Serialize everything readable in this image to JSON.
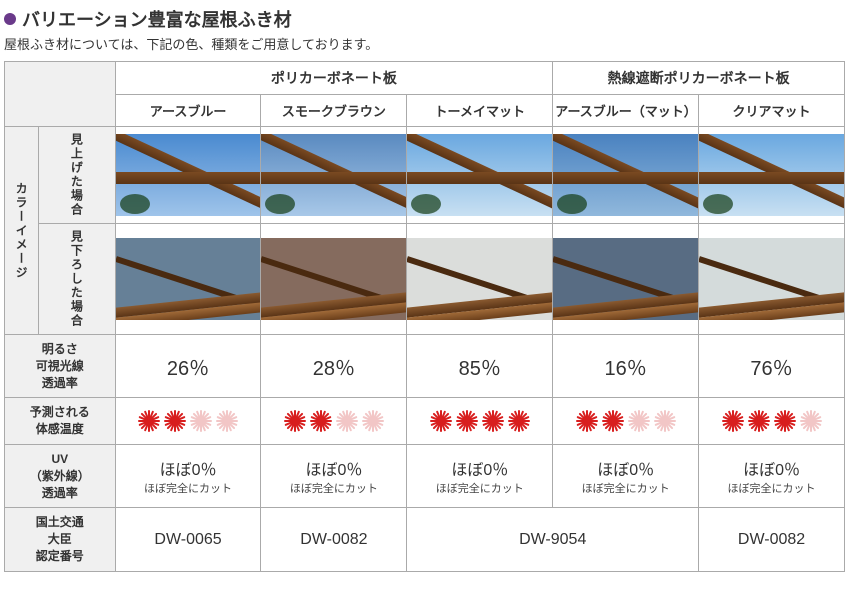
{
  "heading": {
    "bullet_color": "#6a3a8a",
    "title": "バリエーション豊富な屋根ふき材"
  },
  "subtitle": "屋根ふき材については、下記の色、種類をご用意しております。",
  "groups": [
    {
      "label": "ポリカーボネート板",
      "span": 3
    },
    {
      "label": "熱線遮断ポリカーボネート板",
      "span": 2
    }
  ],
  "columns": [
    {
      "label": "アースブルー",
      "sky_top": "#4a8ad0",
      "sky_bot": "#9fc4ea",
      "tint": "#4b6a85",
      "tint_alpha": 0.85
    },
    {
      "label": "スモークブラウン",
      "sky_top": "#5a8ac0",
      "sky_bot": "#a8c8e8",
      "tint": "#6a4a3a",
      "tint_alpha": 0.82
    },
    {
      "label": "トーメイマット",
      "sky_top": "#6aa8e0",
      "sky_bot": "#c8e0f2",
      "tint": "#d8dad8",
      "tint_alpha": 0.92
    },
    {
      "label": "アースブルー（マット）",
      "sky_top": "#4a82c0",
      "sky_bot": "#90b8dc",
      "tint": "#4a6078",
      "tint_alpha": 0.92
    },
    {
      "label": "クリアマット",
      "sky_top": "#6aa8e0",
      "sky_bot": "#c8e0f2",
      "tint": "#d0d8d8",
      "tint_alpha": 0.92
    }
  ],
  "row_labels": {
    "color_image": "カラーイメージ",
    "look_up": "見上げた場合",
    "look_down": "見下ろした場合",
    "brightness": "明るさ\n可視光線\n透過率",
    "feel_temp": "予測される\n体感温度",
    "uv": "UV\n（紫外線）\n透過率",
    "cert": "国土交通\n大臣\n認定番号"
  },
  "brightness": [
    "26％",
    "28％",
    "85％",
    "16％",
    "76％"
  ],
  "suns": {
    "on_color": "#d81e1e",
    "off_color": "#f2c6c6",
    "values": [
      [
        1,
        1,
        0,
        0
      ],
      [
        1,
        1,
        0,
        0
      ],
      [
        1,
        1,
        1,
        1
      ],
      [
        1,
        1,
        0,
        0
      ],
      [
        1,
        1,
        1,
        0
      ]
    ]
  },
  "uv": {
    "main": "ほぼ0％",
    "sub": "ほぼ完全にカット"
  },
  "cert": {
    "cells": [
      {
        "text": "DW-0065",
        "span": 1
      },
      {
        "text": "DW-0082",
        "span": 1
      },
      {
        "text": "DW-9054",
        "span": 2
      },
      {
        "text": "DW-0082",
        "span": 1
      }
    ]
  },
  "layout": {
    "label_col1_w": 34,
    "label_col2_w": 76,
    "data_col_w": 145
  }
}
